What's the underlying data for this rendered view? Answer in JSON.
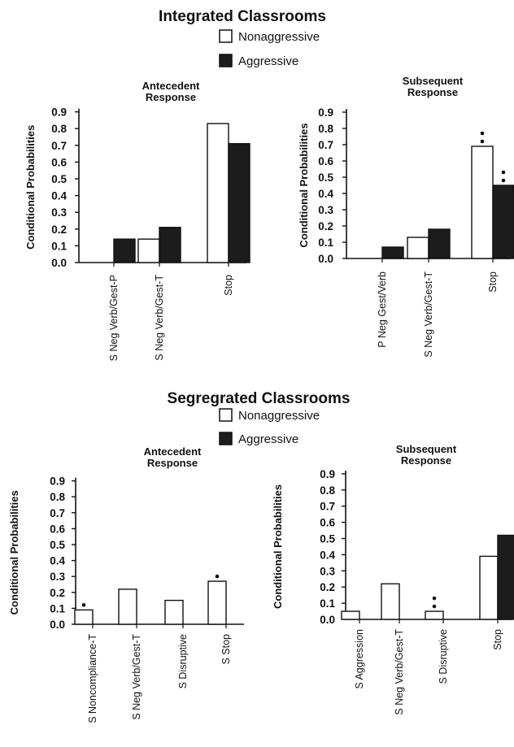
{
  "sections": [
    {
      "title": "Integrated Classrooms",
      "legend": [
        "Nonaggressive",
        "Aggressive"
      ]
    },
    {
      "title": "Segregrated Classrooms",
      "legend": [
        "Nonaggressive",
        "Aggressive"
      ]
    }
  ],
  "colors": {
    "nonaggressive": "#ffffff",
    "aggressive": "#1c1c1c",
    "axis": "#111111"
  },
  "chart_data": [
    {
      "type": "bar",
      "title": [
        "Antecedent",
        "Response"
      ],
      "ylabel": "Conditional Probabilities",
      "ylim": [
        0,
        0.9
      ],
      "yticks": [
        "0.9",
        "0.8",
        "0.7",
        "0.6",
        "0.5",
        "0.4",
        "0.3",
        "0.2",
        "0.1",
        "0.0"
      ],
      "categories": [
        "S Neg Verb/Gest-P",
        "S Neg Verb/Gest-T",
        "Stop"
      ],
      "series": [
        {
          "name": "Nonaggressive",
          "values": [
            0,
            0.14,
            0.83
          ]
        },
        {
          "name": "Aggressive",
          "values": [
            0.14,
            0.21,
            0.71
          ]
        }
      ],
      "markers": []
    },
    {
      "type": "bar",
      "title": [
        "Subsequent",
        "Response"
      ],
      "ylabel": "Conditional Probabilities",
      "ylim": [
        0,
        0.9
      ],
      "yticks": [
        "0.9",
        "0.8",
        "0.7",
        "0.6",
        "0.5",
        "0.4",
        "0.3",
        "0.2",
        "0.1",
        "0.0"
      ],
      "categories": [
        "P Neg Gest/Verb",
        "S Neg Verb/Gest-T",
        "Stop"
      ],
      "series": [
        {
          "name": "Nonaggressive",
          "values": [
            0,
            0.13,
            0.69
          ]
        },
        {
          "name": "Aggressive",
          "values": [
            0.07,
            0.18,
            0.45
          ]
        }
      ],
      "markers": [
        {
          "category": 2,
          "series": 0,
          "text": "**"
        },
        {
          "category": 2,
          "series": 1,
          "text": "**"
        }
      ]
    },
    {
      "type": "bar",
      "title": [
        "Antecedent",
        "Response"
      ],
      "ylabel": "Conditional Probabilities",
      "ylim": [
        0,
        0.9
      ],
      "yticks": [
        "0.9",
        "0.8",
        "0.7",
        "0.6",
        "0.5",
        "0.4",
        "0.3",
        "0.2",
        "0.1",
        "0.0"
      ],
      "categories": [
        "S Noncompliance-T",
        "S Neg Verb/Gest-T",
        "S Disruptive",
        "S Stop"
      ],
      "series": [
        {
          "name": "Nonaggressive",
          "values": [
            0.09,
            0.22,
            0.15,
            0.27
          ]
        },
        {
          "name": "Aggressive",
          "values": [
            0,
            0,
            0,
            0
          ]
        }
      ],
      "markers": [
        {
          "category": 0,
          "series": 0,
          "text": "*"
        },
        {
          "category": 3,
          "series": 0,
          "text": "*"
        }
      ]
    },
    {
      "type": "bar",
      "title": [
        "Subsequent",
        "Response"
      ],
      "ylabel": "Conditional Probabilities",
      "ylim": [
        0,
        0.9
      ],
      "yticks": [
        "0.9",
        "0.8",
        "0.7",
        "0.6",
        "0.5",
        "0.4",
        "0.3",
        "0.2",
        "0.1",
        "0.0"
      ],
      "categories": [
        "S Aggression",
        "S Neg Verb/Gest-T",
        "S Disruptive",
        "Stop"
      ],
      "series": [
        {
          "name": "Nonaggressive",
          "values": [
            0.05,
            0.22,
            0.05,
            0.39
          ]
        },
        {
          "name": "Aggressive",
          "values": [
            0,
            0,
            0,
            0.52
          ]
        }
      ],
      "markers": [
        {
          "category": 2,
          "series": 0,
          "text": "**"
        }
      ]
    }
  ]
}
